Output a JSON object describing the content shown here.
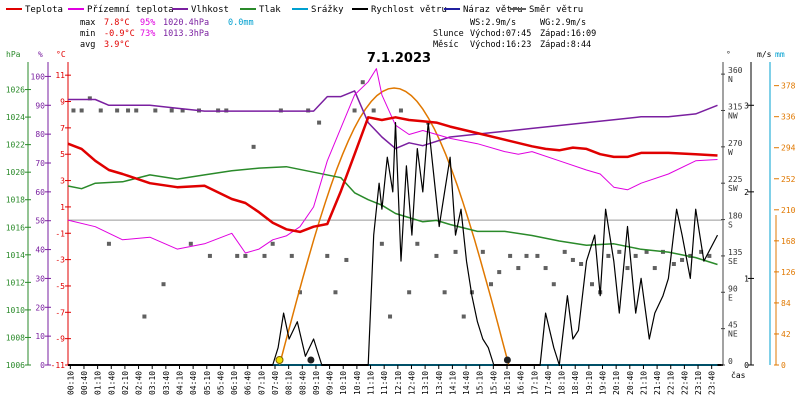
{
  "legend": [
    {
      "label": "Teplota",
      "color": "#e00000"
    },
    {
      "label": "Přízemní teplota",
      "color": "#e000e0"
    },
    {
      "label": "Vlhkost",
      "color": "#7a1fa0"
    },
    {
      "label": "Tlak",
      "color": "#2a8a2a"
    },
    {
      "label": "Srážky",
      "color": "#00a0d0"
    },
    {
      "label": "Rychlost větru",
      "color": "#000000"
    },
    {
      "label": "Náraz větru",
      "color": "#2020a0"
    },
    {
      "label": "Směr větru",
      "color": "#606060"
    }
  ],
  "stats": {
    "max_label": "max",
    "min_label": "min",
    "avg_label": "avg",
    "max_temp": "7.8°C",
    "max_hum": "95%",
    "max_press": "1020.4hPa",
    "max_rain": "0.0mm",
    "min_temp": "-0.9°C",
    "min_hum": "73%",
    "min_press": "1013.3hPa",
    "avg_temp": "3.9°C"
  },
  "wind_info": {
    "ws": "WS:2.9m/s",
    "wg": "WG:2.9m/s"
  },
  "sun": {
    "label": "Slunce",
    "rise": "Východ:07:45",
    "set": "Západ:16:09"
  },
  "moon": {
    "label": "Měsíc",
    "rise": "Východ:16:23",
    "set": "Západ:8:44"
  },
  "title": "7.1.2023",
  "axis_units": {
    "hpa": "hPa",
    "pct": "%",
    "degc": "°C",
    "ms": "m/s",
    "mm": "mm",
    "deg": "°",
    "time": "čas"
  },
  "colors": {
    "temp": "#e00000",
    "ground": "#e000e0",
    "hum": "#7a1fa0",
    "press": "#2a8a2a",
    "rain": "#00a0d0",
    "wind": "#000000",
    "gust": "#2020a0",
    "dir": "#606060",
    "sun": "#e07800",
    "moon": "#202020"
  },
  "chart_data": {
    "type": "line",
    "title": "7.1.2023",
    "xlabel": "čas",
    "x_ticks": [
      "00:10",
      "00:40",
      "01:10",
      "01:40",
      "02:10",
      "02:40",
      "03:10",
      "03:40",
      "04:10",
      "04:40",
      "05:10",
      "05:40",
      "06:10",
      "06:40",
      "07:10",
      "07:40",
      "08:10",
      "08:40",
      "09:10",
      "09:40",
      "10:10",
      "10:40",
      "11:10",
      "11:40",
      "12:10",
      "12:40",
      "13:10",
      "13:40",
      "14:10",
      "14:40",
      "15:10",
      "15:40",
      "16:10",
      "16:40",
      "17:10",
      "17:40",
      "18:10",
      "18:40",
      "19:10",
      "19:40",
      "20:10",
      "20:40",
      "21:10",
      "21:40",
      "22:10",
      "22:40",
      "23:10",
      "23:40"
    ],
    "axes": {
      "pressure": {
        "label": "hPa",
        "ticks": [
          1006,
          1008,
          1010,
          1012,
          1014,
          1016,
          1018,
          1020,
          1022,
          1024,
          1026
        ],
        "range": [
          1006,
          1028
        ]
      },
      "humidity": {
        "label": "%",
        "ticks": [
          0,
          10,
          20,
          30,
          40,
          50,
          60,
          70,
          80,
          90,
          100
        ],
        "range": [
          0,
          105
        ]
      },
      "temperature": {
        "label": "°C",
        "ticks": [
          -11,
          -9,
          -7,
          -5,
          -3,
          -1,
          1,
          3,
          5,
          7,
          9,
          11
        ],
        "range": [
          -11,
          12
        ]
      },
      "wind_dir": {
        "label": "°",
        "ticks": [
          0,
          45,
          90,
          135,
          180,
          225,
          270,
          315,
          360
        ],
        "tick_labels": [
          "",
          "NE",
          "E",
          "SE",
          "S",
          "SW",
          "W",
          "NW",
          "N"
        ],
        "range": [
          0,
          375
        ]
      },
      "wind_speed": {
        "label": "m/s",
        "ticks": [
          0,
          1,
          2,
          3
        ],
        "range": [
          0,
          3.5
        ]
      },
      "rain": {
        "label": "mm",
        "ticks": [
          0,
          42,
          84,
          126,
          168,
          210,
          252,
          294,
          336,
          378
        ],
        "range": [
          0,
          410
        ]
      }
    },
    "series": [
      {
        "name": "Teplota",
        "axis": "temperature",
        "hours": [
          0,
          0.5,
          1,
          1.5,
          2,
          3,
          4,
          5,
          6,
          6.5,
          7,
          7.5,
          8,
          8.5,
          9,
          9.5,
          10,
          10.5,
          11,
          11.5,
          12,
          12.5,
          13,
          13.5,
          14,
          15,
          16,
          17,
          17.5,
          18,
          18.5,
          19,
          19.5,
          20,
          20.5,
          21,
          21.5,
          22,
          23,
          23.8
        ],
        "values": [
          5.8,
          5.4,
          4.5,
          3.8,
          3.5,
          2.8,
          2.5,
          2.6,
          1.6,
          1.3,
          0.6,
          -0.2,
          -0.7,
          -0.9,
          -0.5,
          -0.3,
          2.2,
          5,
          7.8,
          7.6,
          7.8,
          7.6,
          7.5,
          7.4,
          7.1,
          6.6,
          6.1,
          5.6,
          5.4,
          5.3,
          5.5,
          5.4,
          5.0,
          4.8,
          4.8,
          5.1,
          5.1,
          5.1,
          5.0,
          4.9
        ]
      },
      {
        "name": "Přízemní teplota",
        "axis": "temperature",
        "hours": [
          0,
          1,
          2,
          3,
          4,
          5,
          6,
          6.5,
          7,
          7.5,
          8,
          8.5,
          9,
          9.5,
          10,
          10.5,
          11,
          11.3,
          11.5,
          12,
          12.5,
          13,
          14,
          15,
          16,
          16.5,
          17,
          18,
          19,
          19.5,
          20,
          20.5,
          21,
          22,
          23,
          23.8
        ],
        "values": [
          0,
          -0.5,
          -1.5,
          -1.3,
          -2.2,
          -1.8,
          -1.0,
          -2.5,
          -2.2,
          -1.5,
          -1.2,
          -0.5,
          1,
          4.5,
          7,
          9.5,
          10.5,
          11.5,
          9.5,
          7.2,
          6.5,
          6.8,
          6.2,
          5.8,
          5.2,
          5.0,
          5.2,
          4.5,
          3.8,
          3.5,
          2.5,
          2.3,
          2.8,
          3.5,
          4.5,
          4.6
        ]
      },
      {
        "name": "Vlhkost",
        "axis": "humidity",
        "hours": [
          0,
          1,
          1.5,
          2,
          3,
          4,
          5,
          6,
          6.5,
          7,
          7.5,
          8,
          8.5,
          9,
          9.5,
          10,
          10.5,
          11,
          11.5,
          12,
          12.5,
          13,
          14,
          15,
          16,
          17,
          18,
          19,
          20,
          21,
          22,
          23,
          23.8
        ],
        "values": [
          92,
          92,
          90,
          90,
          90,
          89,
          88,
          88,
          88,
          88,
          88,
          88,
          88,
          88,
          93,
          93,
          95,
          84,
          79,
          75,
          77,
          76,
          79,
          80,
          81,
          82,
          83,
          84,
          85,
          86,
          86,
          87,
          90
        ]
      },
      {
        "name": "Tlak",
        "axis": "pressure",
        "hours": [
          0,
          0.5,
          1,
          2,
          3,
          4,
          5,
          6,
          7,
          8,
          9,
          10,
          10.5,
          11,
          11.5,
          12,
          12.5,
          13,
          13.5,
          14,
          15,
          16,
          17,
          18,
          19,
          20,
          21,
          22,
          23,
          23.8
        ],
        "values": [
          1019.0,
          1018.8,
          1019.2,
          1019.3,
          1019.8,
          1019.5,
          1019.8,
          1020.1,
          1020.3,
          1020.4,
          1020.0,
          1019.6,
          1018.5,
          1018.0,
          1017.6,
          1017.0,
          1016.7,
          1016.4,
          1016.5,
          1016.2,
          1015.7,
          1015.7,
          1015.4,
          1015.0,
          1014.7,
          1014.8,
          1014.4,
          1014.2,
          1013.8,
          1013.3
        ]
      },
      {
        "name": "Rychlost větru",
        "axis": "wind_speed",
        "hours": [
          0,
          7.5,
          7.7,
          7.9,
          8.1,
          8.4,
          8.7,
          9.0,
          9.3,
          9.6,
          10.0,
          10.5,
          11.0,
          11.2,
          11.4,
          11.5,
          11.7,
          11.9,
          12.0,
          12.2,
          12.4,
          12.6,
          12.8,
          13.0,
          13.2,
          13.4,
          13.6,
          13.8,
          14.0,
          14.2,
          14.4,
          14.6,
          14.8,
          15.0,
          15.2,
          15.4,
          15.6,
          15.8,
          16.0,
          16.2,
          16.4,
          16.5,
          17.0,
          17.3,
          17.5,
          17.8,
          18.0,
          18.3,
          18.5,
          18.7,
          19.0,
          19.3,
          19.5,
          19.7,
          20.0,
          20.2,
          20.5,
          20.8,
          21.0,
          21.3,
          21.5,
          21.8,
          22.0,
          22.3,
          22.5,
          22.8,
          23.0,
          23.3,
          23.8
        ],
        "values": [
          0,
          0,
          0.2,
          0.6,
          0.3,
          0.5,
          0.1,
          0.3,
          0,
          0,
          0,
          0,
          0,
          1.5,
          2.1,
          1.8,
          2.4,
          2.0,
          2.8,
          1.2,
          2.3,
          1.5,
          2.5,
          2.0,
          2.8,
          2.2,
          1.6,
          2.0,
          2.4,
          1.5,
          1.8,
          1.2,
          0.8,
          0.5,
          0.3,
          0.2,
          0,
          0,
          0,
          0,
          0,
          0,
          0,
          0,
          0.6,
          0.2,
          0,
          0.8,
          0.3,
          0.4,
          1.2,
          1.5,
          0.8,
          1.8,
          1.2,
          0.6,
          1.6,
          0.6,
          1.0,
          0.3,
          0.6,
          0.8,
          1.0,
          1.8,
          1.5,
          1.0,
          1.8,
          1.2,
          1.5
        ]
      },
      {
        "name": "Srážky",
        "axis": "rain",
        "hours": [
          0,
          23.8
        ],
        "values": [
          0,
          0
        ]
      }
    ],
    "sun_arc": {
      "rise": "07:45",
      "set": "16:09",
      "peak": 3.2
    },
    "wind_direction_marks": {
      "axis": "wind_dir",
      "hours": [
        0.2,
        0.5,
        0.8,
        1.2,
        1.5,
        1.8,
        2.2,
        2.5,
        2.8,
        3.2,
        3.5,
        3.8,
        4.2,
        4.5,
        4.8,
        5.2,
        5.5,
        5.8,
        6.2,
        6.5,
        6.8,
        7.2,
        7.5,
        7.8,
        8.2,
        8.5,
        8.8,
        9.2,
        9.5,
        9.8,
        10.2,
        10.5,
        10.8,
        11.2,
        11.5,
        11.8,
        12.2,
        12.5,
        12.8,
        13.2,
        13.5,
        13.8,
        14.2,
        14.5,
        14.8,
        15.2,
        15.5,
        15.8,
        16.2,
        16.5,
        16.8,
        17.2,
        17.5,
        17.8,
        18.2,
        18.5,
        18.8,
        19.2,
        19.5,
        19.8,
        20.2,
        20.5,
        20.8,
        21.2,
        21.5,
        21.8,
        22.2,
        22.5,
        22.8,
        23.2,
        23.5
      ],
      "values": [
        315,
        315,
        330,
        315,
        150,
        315,
        315,
        315,
        60,
        315,
        100,
        315,
        315,
        150,
        315,
        135,
        315,
        315,
        135,
        135,
        270,
        135,
        150,
        315,
        135,
        90,
        315,
        300,
        135,
        90,
        130,
        315,
        350,
        315,
        150,
        60,
        315,
        90,
        150,
        300,
        135,
        90,
        140,
        60,
        90,
        140,
        100,
        115,
        135,
        120,
        135,
        135,
        120,
        100,
        140,
        130,
        125,
        100,
        90,
        135,
        140,
        120,
        135,
        140,
        120,
        140,
        125,
        130,
        135,
        140,
        135
      ]
    }
  }
}
